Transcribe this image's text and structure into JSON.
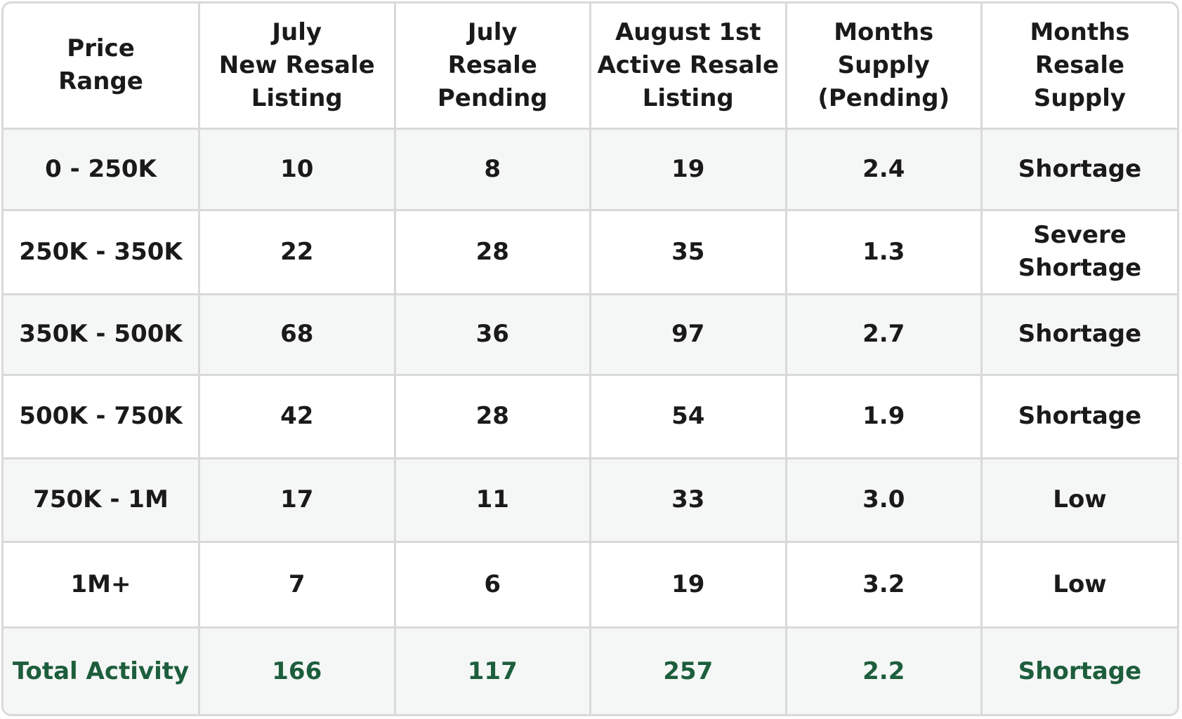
{
  "table": {
    "headers": [
      "Price\nRange",
      "July\nNew Resale\nListing",
      "July\nResale\nPending",
      "August 1st\nActive Resale\nListing",
      "Months\nSupply\n(Pending)",
      "Months\nResale\nSupply"
    ],
    "rows": [
      [
        "0 - 250K",
        "10",
        "8",
        "19",
        "2.4",
        "Shortage"
      ],
      [
        "250K - 350K",
        "22",
        "28",
        "35",
        "1.3",
        "Severe\nShortage"
      ],
      [
        "350K - 500K",
        "68",
        "36",
        "97",
        "2.7",
        "Shortage"
      ],
      [
        "500K - 750K",
        "42",
        "28",
        "54",
        "1.9",
        "Shortage"
      ],
      [
        "750K - 1M",
        "17",
        "11",
        "33",
        "3.0",
        "Low"
      ],
      [
        "1M+",
        "7",
        "6",
        "19",
        "3.2",
        "Low"
      ]
    ],
    "total": [
      "Total Activity",
      "166",
      "117",
      "257",
      "2.2",
      "Shortage"
    ]
  },
  "colors": {
    "text": "#1a1a1a",
    "total_text": "#1d5e3c",
    "border": "#d9d9d9",
    "shaded_row": "#f5f7f6",
    "plain_row": "#ffffff"
  }
}
